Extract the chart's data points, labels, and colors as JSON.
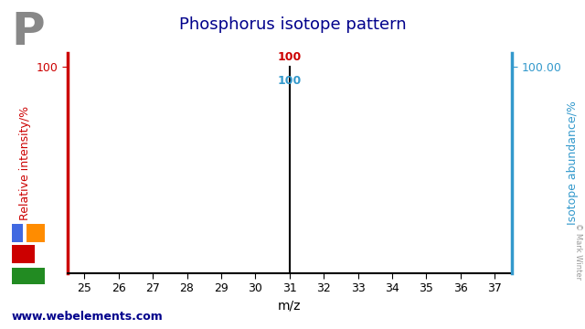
{
  "title": "Phosphorus isotope pattern",
  "element_symbol": "P",
  "mz_values": [
    31
  ],
  "intensities": [
    100
  ],
  "abundance_values": [
    100.0
  ],
  "xlabel": "m/z",
  "ylabel_left": "Relative intensity/%",
  "ylabel_right": "Isotope abundance/%",
  "xlim": [
    24.5,
    37.5
  ],
  "ylim": [
    0,
    107
  ],
  "xticks": [
    25,
    26,
    27,
    28,
    29,
    30,
    31,
    32,
    33,
    34,
    35,
    36,
    37
  ],
  "yticks_left": [
    100
  ],
  "ytick_labels_left": [
    "100"
  ],
  "yticks_right": [
    100
  ],
  "ytick_labels_right": [
    "100.00"
  ],
  "title_color": "#00008B",
  "left_axis_color": "#CC0000",
  "right_axis_color": "#3399CC",
  "bar_color": "black",
  "annotation_left_color": "#CC0000",
  "annotation_right_color": "#3399CC",
  "website": "www.webelements.com",
  "website_color": "#00008B",
  "copyright": "© Mark Winter",
  "background_color": "#ffffff",
  "periodic_table_colors": {
    "blue": "#4169E1",
    "red": "#CC0000",
    "orange": "#FF8C00",
    "green": "#228B22"
  }
}
